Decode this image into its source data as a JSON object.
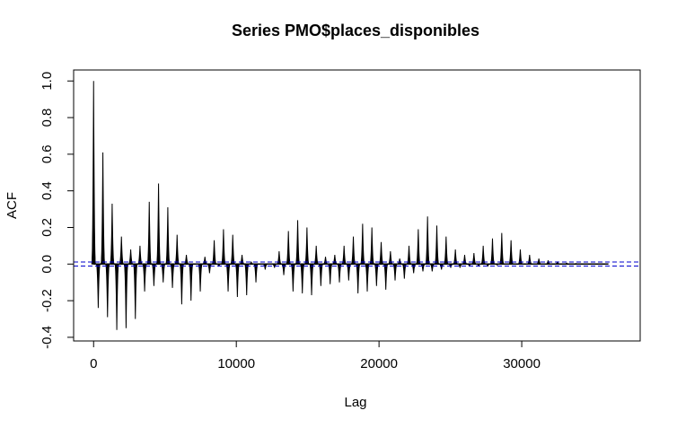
{
  "chart_data": {
    "type": "bar",
    "title": "Series  PMO$places_disponibles",
    "xlabel": "Lag",
    "ylabel": "ACF",
    "xlim": [
      -1400,
      38300
    ],
    "ylim": [
      -0.42,
      1.06
    ],
    "x_ticks": [
      0,
      10000,
      20000,
      30000
    ],
    "x_tick_labels": [
      "0",
      "10000",
      "20000",
      "30000"
    ],
    "y_ticks": [
      -0.4,
      -0.2,
      0.0,
      0.2,
      0.4,
      0.6,
      0.8,
      1.0
    ],
    "y_tick_labels": [
      "-0.4",
      "-0.2",
      "0.0",
      "0.2",
      "0.4",
      "0.6",
      "0.8",
      "1.0"
    ],
    "confidence_bound": 0.011,
    "confidence_color": "#0000cc",
    "bar_color": "#000000",
    "grid": false,
    "lags": [
      0,
      650,
      1300,
      1950,
      2600,
      3250,
      3900,
      4550,
      5200,
      5850,
      6500,
      7150,
      7800,
      8450,
      9100,
      9750,
      10400,
      11050,
      11700,
      12350,
      13000,
      13650,
      14300,
      14950,
      15600,
      16250,
      16900,
      17550,
      18200,
      18850,
      19500,
      20150,
      20800,
      21450,
      22100,
      22750,
      23400,
      24050,
      24700,
      25350,
      26000,
      26650,
      27300,
      27950,
      28600,
      29250,
      29900,
      30550,
      31200,
      31850,
      32500,
      33150,
      33800,
      34450,
      35100,
      35750
    ],
    "values": [
      1.0,
      0.61,
      0.33,
      0.15,
      0.08,
      0.1,
      0.34,
      0.44,
      0.31,
      0.16,
      0.05,
      0.0,
      0.04,
      0.13,
      0.19,
      0.16,
      0.05,
      0.01,
      0.0,
      0.0,
      0.07,
      0.18,
      0.24,
      0.2,
      0.1,
      0.04,
      0.05,
      0.1,
      0.15,
      0.22,
      0.2,
      0.12,
      0.07,
      0.03,
      0.1,
      0.19,
      0.26,
      0.21,
      0.15,
      0.08,
      0.05,
      0.06,
      0.1,
      0.14,
      0.17,
      0.13,
      0.08,
      0.05,
      0.03,
      0.02,
      0.01,
      0.005,
      0.003,
      0.002,
      0.001,
      0.001
    ],
    "troughs": [
      -0.24,
      -0.29,
      -0.36,
      -0.35,
      -0.3,
      -0.15,
      -0.12,
      -0.1,
      -0.13,
      -0.22,
      -0.2,
      -0.15,
      -0.05,
      -0.01,
      -0.15,
      -0.18,
      -0.17,
      -0.1,
      -0.03,
      -0.02,
      -0.06,
      -0.15,
      -0.16,
      -0.17,
      -0.12,
      -0.11,
      -0.1,
      -0.09,
      -0.16,
      -0.15,
      -0.12,
      -0.14,
      -0.09,
      -0.08,
      -0.05,
      -0.04,
      -0.04,
      -0.03,
      -0.02,
      -0.02,
      -0.01,
      -0.01,
      -0.01,
      -0.005,
      -0.002,
      -0.002,
      -0.001,
      0.0,
      0.0,
      0.0,
      0.0,
      0.0,
      0.0,
      0.0,
      0.0,
      0.0
    ],
    "peak_halfwidth": 0.15
  }
}
